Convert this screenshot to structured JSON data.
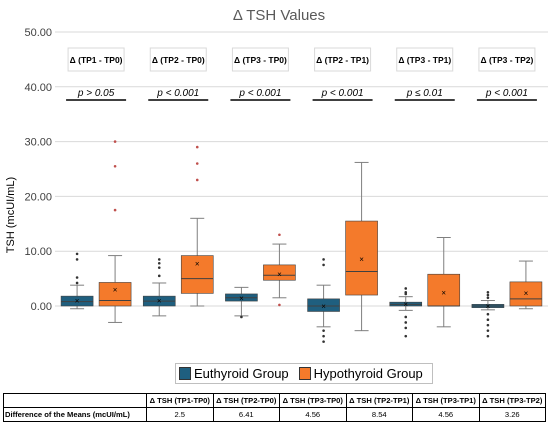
{
  "chart_data": {
    "type": "box",
    "title": "Δ TSH Values",
    "ylabel": "TSH (mcUI/mL)",
    "ylim": [
      -10,
      50
    ],
    "yticks": [
      "0.00",
      "10.00",
      "20.00",
      "30.00",
      "40.00",
      "50.00"
    ],
    "ytick_values": [
      0,
      10,
      20,
      30,
      40,
      50
    ],
    "grid": true,
    "comparisons": [
      {
        "label": "Δ (TP1 - TP0)",
        "p": "p > 0.05"
      },
      {
        "label": "Δ (TP2 - TP0)",
        "p": "p < 0.001"
      },
      {
        "label": "Δ (TP3 - TP0)",
        "p": "p < 0.001"
      },
      {
        "label": "Δ (TP2 - TP1)",
        "p": "p < 0.001"
      },
      {
        "label": "Δ (TP3 - TP1)",
        "p": "p ≤ 0.01"
      },
      {
        "label": "Δ (TP3 - TP2)",
        "p": "p < 0.001"
      }
    ],
    "series": [
      {
        "name": "Euthyroid Group",
        "color": "#1f5f7f",
        "boxes": [
          {
            "min": -0.5,
            "q1": 0.0,
            "median": 0.8,
            "q3": 1.8,
            "max": 3.8,
            "mean": 1.0,
            "outliers": [
              4.2,
              5.2,
              8.5,
              9.5
            ]
          },
          {
            "min": -1.8,
            "q1": 0.0,
            "median": 0.9,
            "q3": 1.8,
            "max": 4.2,
            "mean": 1.0,
            "outliers": [
              5.5,
              7.0,
              7.8,
              8.5
            ]
          },
          {
            "min": -1.8,
            "q1": 0.9,
            "median": 1.5,
            "q3": 2.2,
            "max": 3.4,
            "mean": 1.5,
            "outliers": [
              -2.0
            ]
          },
          {
            "min": -3.8,
            "q1": -1.0,
            "median": 0.0,
            "q3": 1.3,
            "max": 3.8,
            "mean": 0.0,
            "outliers": [
              -4.5,
              -5.5,
              -6.5,
              7.5,
              8.5
            ]
          },
          {
            "min": -0.8,
            "q1": 0.0,
            "median": 0.3,
            "q3": 0.7,
            "max": 1.7,
            "mean": 0.4,
            "outliers": [
              -2.0,
              -3.0,
              -4.0,
              -5.5,
              2.2,
              2.5,
              3.2
            ]
          },
          {
            "min": -0.7,
            "q1": -0.3,
            "median": 0.0,
            "q3": 0.3,
            "max": 1.0,
            "mean": 0.0,
            "outliers": [
              -1.5,
              -2.5,
              -3.5,
              -4.5,
              -5.5,
              1.5,
              2.0,
              2.5
            ]
          }
        ]
      },
      {
        "name": "Hypothyroid Group",
        "color": "#f47a2b",
        "boxes": [
          {
            "min": -3.0,
            "q1": 0.0,
            "median": 1.0,
            "q3": 4.3,
            "max": 9.2,
            "mean": 3.0,
            "outliers": [
              17.5,
              25.5,
              30.0
            ]
          },
          {
            "min": 0.0,
            "q1": 2.3,
            "median": 5.0,
            "q3": 9.2,
            "max": 16.0,
            "mean": 7.8,
            "outliers": [
              23.0,
              26.0,
              29.0
            ]
          },
          {
            "min": 1.5,
            "q1": 4.7,
            "median": 5.6,
            "q3": 7.5,
            "max": 11.3,
            "mean": 5.8,
            "outliers": [
              0.2,
              13.0
            ]
          },
          {
            "min": -4.5,
            "q1": 2.0,
            "median": 6.3,
            "q3": 15.5,
            "max": 26.2,
            "mean": 8.6,
            "outliers": []
          },
          {
            "min": -3.8,
            "q1": 0.0,
            "median": 0.0,
            "q3": 5.8,
            "max": 12.5,
            "mean": 2.5,
            "outliers": []
          },
          {
            "min": -0.5,
            "q1": 0.0,
            "median": 1.3,
            "q3": 4.4,
            "max": 8.2,
            "mean": 2.4,
            "outliers": []
          }
        ]
      }
    ]
  },
  "legend": {
    "euthyroid": "Euthyroid Group",
    "hypothyroid": "Hypothyroid Group"
  },
  "table": {
    "headers": [
      "Δ TSH (TP1-TP0)",
      "Δ TSH (TP2-TP0)",
      "Δ TSH (TP3-TP0)",
      "Δ TSH (TP2-TP1)",
      "Δ TSH (TP3-TP1)",
      "Δ TSH (TP3-TP2)"
    ],
    "row_label": "Difference of the Means (mcUI/mL)",
    "values": [
      "2.5",
      "6.41",
      "4.56",
      "8.54",
      "4.56",
      "3.26"
    ]
  }
}
